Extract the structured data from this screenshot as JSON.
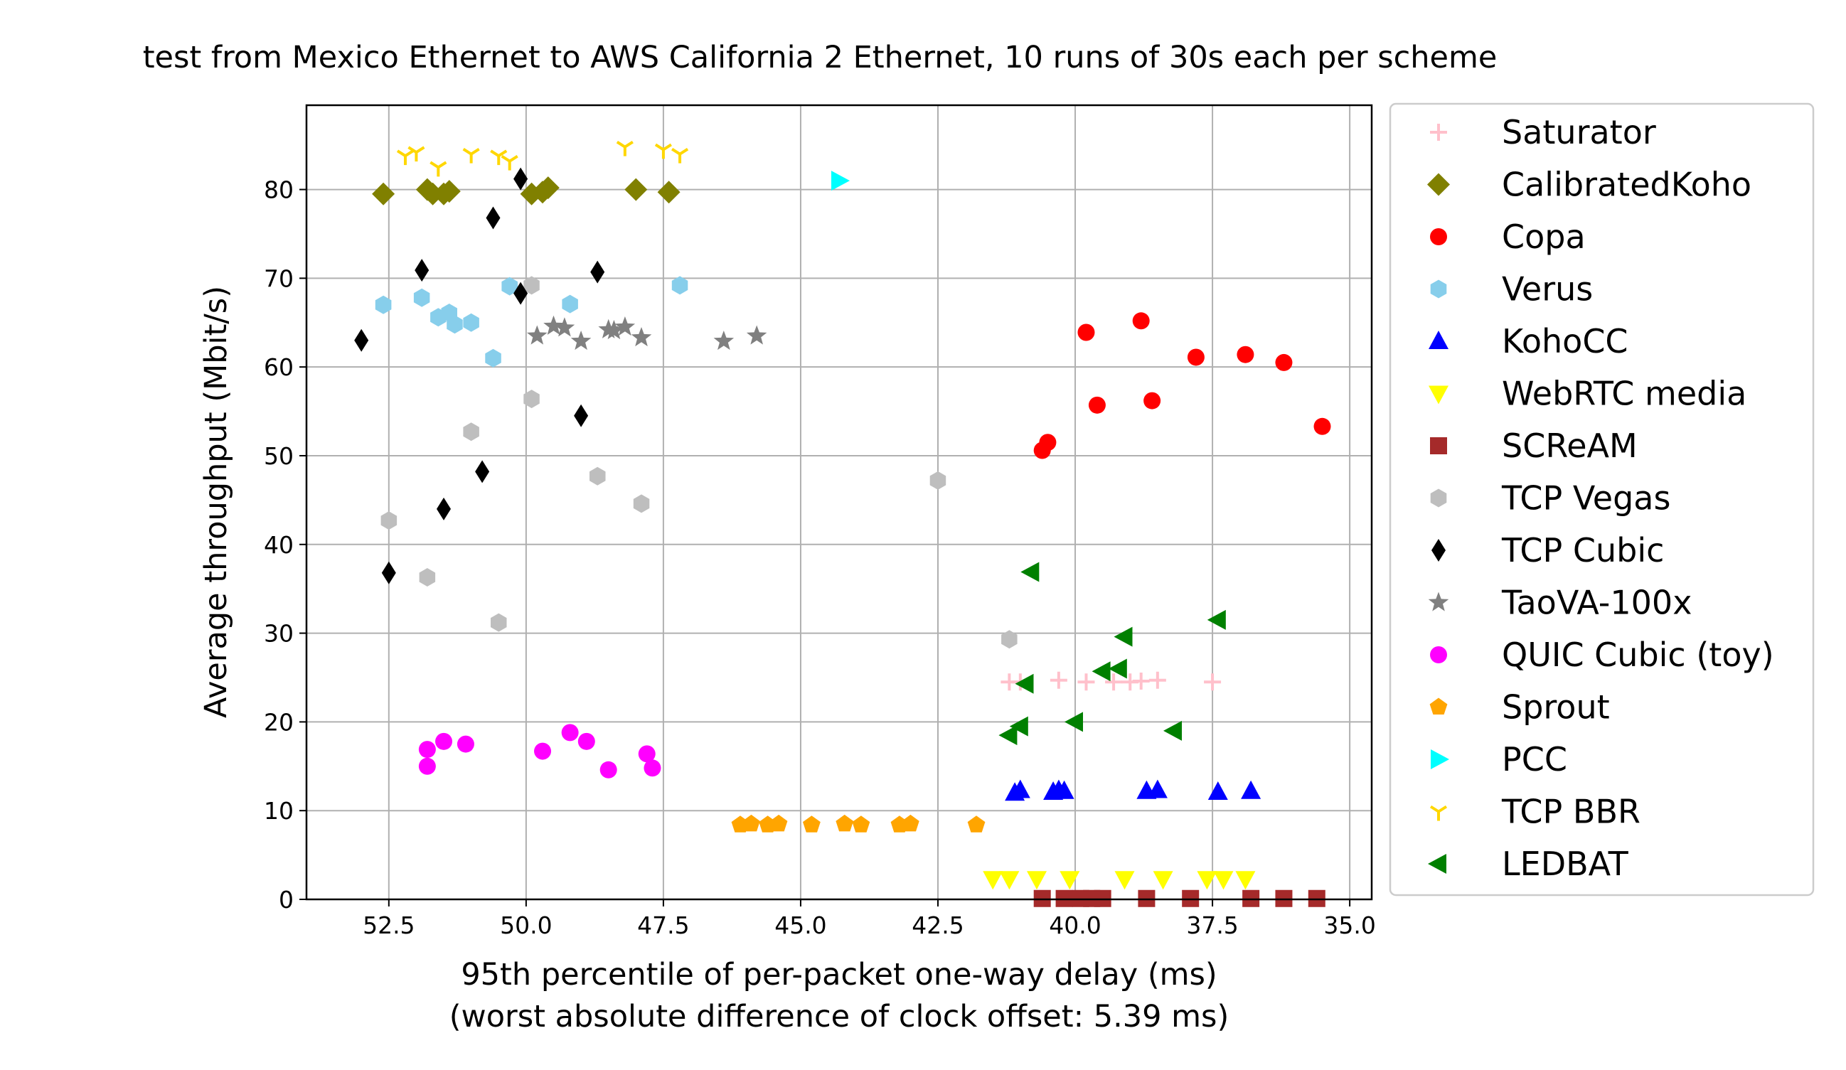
{
  "chart_data": {
    "type": "scatter",
    "title": "test from Mexico Ethernet to AWS California 2 Ethernet, 10 runs of 30s each per scheme",
    "xlabel": "95th percentile of per-packet one-way delay (ms)",
    "xlabel2": "(worst absolute difference of clock offset: 5.39 ms)",
    "ylabel": "Average throughput (Mbit/s)",
    "xlim": [
      54.0,
      34.6
    ],
    "ylim": [
      0,
      89.5
    ],
    "x_inverted": true,
    "grid": true,
    "legend_position": "outside-right",
    "x_ticks": [
      52.5,
      50.0,
      47.5,
      45.0,
      42.5,
      40.0,
      37.5,
      35.0
    ],
    "x_tick_labels": [
      "52.5",
      "50.0",
      "47.5",
      "45.0",
      "42.5",
      "40.0",
      "37.5",
      "35.0"
    ],
    "y_ticks": [
      0,
      10,
      20,
      30,
      40,
      50,
      60,
      70,
      80
    ],
    "y_tick_labels": [
      "0",
      "10",
      "20",
      "30",
      "40",
      "50",
      "60",
      "70",
      "80"
    ],
    "series": [
      {
        "name": "Saturator",
        "marker": "plus",
        "color": "#ffc0cb",
        "points": [
          [
            41.2,
            24.5
          ],
          [
            41.0,
            24.5
          ],
          [
            40.3,
            24.7
          ],
          [
            39.8,
            24.5
          ],
          [
            39.3,
            24.5
          ],
          [
            39.0,
            24.5
          ],
          [
            38.8,
            24.6
          ],
          [
            38.5,
            24.7
          ],
          [
            37.5,
            24.5
          ]
        ]
      },
      {
        "name": "CalibratedKoho",
        "marker": "diamond",
        "color": "#808000",
        "points": [
          [
            52.6,
            79.5
          ],
          [
            51.8,
            80.0
          ],
          [
            51.7,
            79.5
          ],
          [
            51.5,
            79.5
          ],
          [
            51.4,
            79.8
          ],
          [
            49.9,
            79.5
          ],
          [
            49.7,
            79.7
          ],
          [
            49.6,
            80.2
          ],
          [
            48.0,
            80.0
          ],
          [
            47.4,
            79.7
          ]
        ]
      },
      {
        "name": "Copa",
        "marker": "circle",
        "color": "#ff0000",
        "points": [
          [
            40.6,
            50.6
          ],
          [
            40.5,
            51.5
          ],
          [
            39.8,
            63.9
          ],
          [
            39.6,
            55.7
          ],
          [
            38.8,
            65.2
          ],
          [
            38.6,
            56.2
          ],
          [
            37.8,
            61.1
          ],
          [
            36.9,
            61.4
          ],
          [
            36.2,
            60.5
          ],
          [
            35.5,
            53.3
          ]
        ]
      },
      {
        "name": "Verus",
        "marker": "hexagon",
        "color": "#87ceeb",
        "points": [
          [
            52.6,
            67.0
          ],
          [
            51.9,
            67.8
          ],
          [
            51.6,
            65.6
          ],
          [
            51.4,
            66.1
          ],
          [
            51.3,
            64.8
          ],
          [
            51.0,
            65.0
          ],
          [
            50.6,
            61.0
          ],
          [
            50.3,
            69.1
          ],
          [
            49.2,
            67.1
          ],
          [
            47.2,
            69.2
          ]
        ]
      },
      {
        "name": "KohoCC",
        "marker": "triangle-up",
        "color": "#0000ff",
        "points": [
          [
            41.1,
            12.0
          ],
          [
            41.0,
            12.3
          ],
          [
            40.4,
            12.1
          ],
          [
            40.3,
            12.3
          ],
          [
            40.2,
            12.2
          ],
          [
            38.7,
            12.2
          ],
          [
            38.5,
            12.3
          ],
          [
            37.4,
            12.1
          ],
          [
            36.8,
            12.2
          ]
        ]
      },
      {
        "name": "WebRTC media",
        "marker": "triangle-down",
        "color": "#ffff00",
        "points": [
          [
            41.5,
            2.3
          ],
          [
            41.2,
            2.3
          ],
          [
            40.7,
            2.3
          ],
          [
            40.1,
            2.3
          ],
          [
            39.1,
            2.3
          ],
          [
            38.4,
            2.3
          ],
          [
            37.6,
            2.3
          ],
          [
            37.3,
            2.3
          ],
          [
            36.9,
            2.3
          ]
        ]
      },
      {
        "name": "SCReAM",
        "marker": "square",
        "color": "#a52a2a",
        "points": [
          [
            40.6,
            0.1
          ],
          [
            40.2,
            0.1
          ],
          [
            39.9,
            0.1
          ],
          [
            39.7,
            0.1
          ],
          [
            39.5,
            0.1
          ],
          [
            38.7,
            0.1
          ],
          [
            37.9,
            0.1
          ],
          [
            36.8,
            0.1
          ],
          [
            36.2,
            0.1
          ],
          [
            35.6,
            0.1
          ]
        ]
      },
      {
        "name": "TCP Vegas",
        "marker": "hexagon",
        "color": "#bebebe",
        "points": [
          [
            52.5,
            42.7
          ],
          [
            51.8,
            36.3
          ],
          [
            51.0,
            52.7
          ],
          [
            50.5,
            31.2
          ],
          [
            49.9,
            56.4
          ],
          [
            49.9,
            69.2
          ],
          [
            48.7,
            47.7
          ],
          [
            47.9,
            44.6
          ],
          [
            42.5,
            47.2
          ],
          [
            41.2,
            29.3
          ]
        ]
      },
      {
        "name": "TCP Cubic",
        "marker": "thin-diamond",
        "color": "#000000",
        "points": [
          [
            53.0,
            63.0
          ],
          [
            52.5,
            36.8
          ],
          [
            51.9,
            70.9
          ],
          [
            51.5,
            44.0
          ],
          [
            50.8,
            48.2
          ],
          [
            50.6,
            76.8
          ],
          [
            50.1,
            81.2
          ],
          [
            50.1,
            68.3
          ],
          [
            49.0,
            54.5
          ],
          [
            48.7,
            70.7
          ]
        ]
      },
      {
        "name": "TaoVA-100x",
        "marker": "star",
        "color": "#808080",
        "points": [
          [
            49.8,
            63.5
          ],
          [
            49.5,
            64.6
          ],
          [
            49.3,
            64.4
          ],
          [
            49.0,
            62.9
          ],
          [
            48.5,
            64.2
          ],
          [
            48.4,
            64.1
          ],
          [
            48.2,
            64.5
          ],
          [
            47.9,
            63.3
          ],
          [
            46.4,
            62.9
          ],
          [
            45.8,
            63.5
          ]
        ]
      },
      {
        "name": "QUIC Cubic (toy)",
        "marker": "circle",
        "color": "#ff00ff",
        "points": [
          [
            51.8,
            15.0
          ],
          [
            51.8,
            16.9
          ],
          [
            51.5,
            17.8
          ],
          [
            51.1,
            17.5
          ],
          [
            49.7,
            16.7
          ],
          [
            49.2,
            18.8
          ],
          [
            48.9,
            17.8
          ],
          [
            48.5,
            14.6
          ],
          [
            47.8,
            16.4
          ],
          [
            47.7,
            14.8
          ]
        ]
      },
      {
        "name": "Sprout",
        "marker": "pentagon",
        "color": "#ffa500",
        "points": [
          [
            46.1,
            8.4
          ],
          [
            45.9,
            8.5
          ],
          [
            45.6,
            8.4
          ],
          [
            45.4,
            8.5
          ],
          [
            44.8,
            8.4
          ],
          [
            44.2,
            8.5
          ],
          [
            43.9,
            8.4
          ],
          [
            43.2,
            8.4
          ],
          [
            43.0,
            8.5
          ],
          [
            41.8,
            8.4
          ]
        ]
      },
      {
        "name": "PCC",
        "marker": "triangle-right",
        "color": "#00ffff",
        "points": [
          [
            44.3,
            81.0
          ]
        ]
      },
      {
        "name": "TCP BBR",
        "marker": "tri-down",
        "color": "#ffd700",
        "points": [
          [
            52.2,
            83.8
          ],
          [
            52.0,
            84.2
          ],
          [
            51.6,
            82.5
          ],
          [
            51.0,
            84.0
          ],
          [
            50.5,
            83.8
          ],
          [
            50.3,
            83.2
          ],
          [
            48.2,
            84.8
          ],
          [
            47.5,
            84.5
          ],
          [
            47.2,
            84.0
          ]
        ]
      },
      {
        "name": "LEDBAT",
        "marker": "triangle-left",
        "color": "#008000",
        "points": [
          [
            40.8,
            36.9
          ],
          [
            40.9,
            24.3
          ],
          [
            41.0,
            19.5
          ],
          [
            41.2,
            18.5
          ],
          [
            40.0,
            20.0
          ],
          [
            39.5,
            25.7
          ],
          [
            39.1,
            29.6
          ],
          [
            39.2,
            26.0
          ],
          [
            38.2,
            19.0
          ],
          [
            37.4,
            31.5
          ]
        ]
      }
    ]
  }
}
